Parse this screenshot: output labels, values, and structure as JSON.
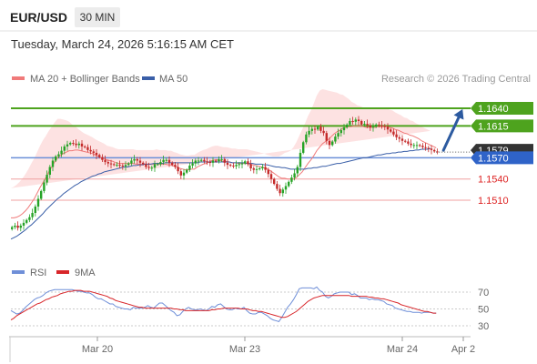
{
  "header": {
    "symbol": "EUR/USD",
    "timeframe": "30 MIN",
    "datetime": "Tuesday, March 24, 2026 5:16:15 AM CET"
  },
  "legend": {
    "ma20": "MA 20 + Bollinger Bands",
    "ma50": "MA 50",
    "credit": "Research © 2026 Trading Central",
    "rsi": "RSI",
    "rsi_ma": "9MA"
  },
  "colors": {
    "up": "#26a326",
    "down": "#c42a2a",
    "bollinger_fill": "#fde2e2",
    "ma20": "#f07a7a",
    "ma50": "#3a5fa8",
    "resistance": "#4ea31e",
    "support": "#f0a0a0",
    "pivot": "#6b8fd8",
    "arrow": "#2c5aa0",
    "rsi": "#6f8fd8",
    "rsi_ma": "#d8262a"
  },
  "chart_data": [
    {
      "type": "candlestick",
      "title": "EUR/USD 30 MIN",
      "x_ticks": [
        "Mar 20",
        "Mar 23",
        "Mar 24",
        "Apr 2"
      ],
      "levels": [
        {
          "value": 1.164,
          "label": "1.1640",
          "kind": "resistance"
        },
        {
          "value": 1.1615,
          "label": "1.1615",
          "kind": "resistance"
        },
        {
          "value": 1.157,
          "label": "1.1570",
          "kind": "pivot"
        },
        {
          "value": 1.154,
          "label": "1.1540",
          "kind": "support"
        },
        {
          "value": 1.151,
          "label": "1.1510",
          "kind": "support"
        }
      ],
      "last_price_label": "1.1579",
      "close": [
        1.1472,
        1.1474,
        1.1471,
        1.1474,
        1.1478,
        1.1482,
        1.1486,
        1.1492,
        1.1501,
        1.1512,
        1.1523,
        1.1535,
        1.1546,
        1.1557,
        1.1566,
        1.1572,
        1.1575,
        1.158,
        1.1586,
        1.1589,
        1.1591,
        1.159,
        1.1588,
        1.159,
        1.1586,
        1.1585,
        1.1581,
        1.1579,
        1.1577,
        1.1574,
        1.1571,
        1.1567,
        1.1564,
        1.1562,
        1.1561,
        1.156,
        1.156,
        1.1559,
        1.1558,
        1.156,
        1.1562,
        1.1566,
        1.1568,
        1.1566,
        1.1563,
        1.1561,
        1.1557,
        1.1556,
        1.1556,
        1.1561,
        1.1561,
        1.1564,
        1.1567,
        1.1567,
        1.1563,
        1.156,
        1.1557,
        1.1551,
        1.1545,
        1.1549,
        1.1553,
        1.1559,
        1.1562,
        1.1566,
        1.1566,
        1.1567,
        1.1565,
        1.1564,
        1.1563,
        1.1566,
        1.1565,
        1.1568,
        1.1568,
        1.1563,
        1.156,
        1.1559,
        1.1558,
        1.156,
        1.1561,
        1.1562,
        1.1565,
        1.1561,
        1.1555,
        1.1553,
        1.1554,
        1.1555,
        1.1557,
        1.1553,
        1.1547,
        1.154,
        1.1533,
        1.1526,
        1.152,
        1.1525,
        1.153,
        1.1536,
        1.1542,
        1.1548,
        1.1557,
        1.1577,
        1.1592,
        1.1603,
        1.1608,
        1.1611,
        1.161,
        1.1614,
        1.1608,
        1.1605,
        1.1594,
        1.1588,
        1.1593,
        1.16,
        1.1605,
        1.1609,
        1.1613,
        1.1617,
        1.1622,
        1.1621,
        1.1624,
        1.1622,
        1.1617,
        1.1618,
        1.1616,
        1.1613,
        1.1614,
        1.1617,
        1.1616,
        1.1615,
        1.1614,
        1.161,
        1.1607,
        1.1603,
        1.1599,
        1.1597,
        1.1594,
        1.1593,
        1.159,
        1.1588,
        1.1588,
        1.1588,
        1.1587,
        1.1585,
        1.1584,
        1.1583,
        1.1581,
        1.1579,
        1.1578
      ],
      "ma20": [
        1.1485,
        1.1485,
        1.1486,
        1.1488,
        1.1491,
        1.1495,
        1.15,
        1.1506,
        1.1512,
        1.152,
        1.1528,
        1.1535,
        1.1542,
        1.155,
        1.1557,
        1.1564,
        1.157,
        1.1573,
        1.1576,
        1.1578,
        1.158,
        1.158,
        1.1581,
        1.1581,
        1.158,
        1.1579,
        1.1578,
        1.1577,
        1.1576,
        1.1574,
        1.1572,
        1.157,
        1.1569,
        1.1567,
        1.1566,
        1.1565,
        1.1563,
        1.1562,
        1.1562,
        1.1562,
        1.1562,
        1.1562,
        1.1562,
        1.1561,
        1.1561,
        1.1561,
        1.1561,
        1.1561,
        1.1561,
        1.1561,
        1.1562,
        1.1561,
        1.1561,
        1.1561,
        1.156,
        1.156,
        1.1558,
        1.1557,
        1.1555,
        1.1554,
        1.1553,
        1.1553,
        1.1554,
        1.1554,
        1.1557,
        1.1559,
        1.1561,
        1.1562,
        1.1564,
        1.1566,
        1.1567,
        1.1567,
        1.1566,
        1.1565,
        1.1565,
        1.1564,
        1.1563,
        1.1563,
        1.1562,
        1.1562,
        1.1562,
        1.1562,
        1.1561,
        1.156,
        1.1559,
        1.1558,
        1.1557,
        1.1556,
        1.1554,
        1.1552,
        1.1549,
        1.1546,
        1.1543,
        1.1541,
        1.1541,
        1.154,
        1.154,
        1.154,
        1.1542,
        1.1546,
        1.155,
        1.1556,
        1.1562,
        1.1567,
        1.1573,
        1.158,
        1.1585,
        1.159,
        1.1593,
        1.1596,
        1.16,
        1.1604,
        1.1607,
        1.1609,
        1.1612,
        1.1613,
        1.1614,
        1.1614,
        1.1615,
        1.1615,
        1.1615,
        1.1614,
        1.1613,
        1.1613,
        1.1613,
        1.1613,
        1.1614,
        1.1614,
        1.1614,
        1.1614,
        1.1613,
        1.1612,
        1.161,
        1.1609,
        1.1607,
        1.1605,
        1.1604,
        1.1602,
        1.1601,
        1.1599,
        1.1597,
        1.1594,
        1.1592,
        1.159,
        1.1588,
        1.1586,
        1.1584
      ],
      "ma50": [
        1.1455,
        1.1457,
        1.1459,
        1.1462,
        1.1465,
        1.1468,
        1.1472,
        1.1475,
        1.1479,
        1.1483,
        1.1487,
        1.1491,
        1.1496,
        1.15,
        1.1504,
        1.1508,
        1.1512,
        1.1515,
        1.1519,
        1.1522,
        1.1525,
        1.1528,
        1.1531,
        1.1533,
        1.1536,
        1.1538,
        1.154,
        1.1542,
        1.1544,
        1.1545,
        1.1547,
        1.1548,
        1.155,
        1.1551,
        1.1552,
        1.1553,
        1.1554,
        1.1555,
        1.1556,
        1.1557,
        1.1557,
        1.1558,
        1.1559,
        1.1559,
        1.156,
        1.156,
        1.1561,
        1.1561,
        1.1561,
        1.1562,
        1.1562,
        1.1562,
        1.1562,
        1.1563,
        1.1563,
        1.1563,
        1.1563,
        1.1563,
        1.1563,
        1.1563,
        1.1563,
        1.1563,
        1.1563,
        1.1563,
        1.1563,
        1.1564,
        1.1564,
        1.1564,
        1.1564,
        1.1564,
        1.1564,
        1.1564,
        1.1564,
        1.1564,
        1.1564,
        1.1564,
        1.1563,
        1.1563,
        1.1563,
        1.1563,
        1.1563,
        1.1562,
        1.1562,
        1.1562,
        1.1561,
        1.1561,
        1.1561,
        1.156,
        1.156,
        1.1559,
        1.1558,
        1.1557,
        1.1557,
        1.1556,
        1.1556,
        1.1555,
        1.1554,
        1.1554,
        1.1554,
        1.1554,
        1.1554,
        1.1554,
        1.1555,
        1.1555,
        1.1556,
        1.1556,
        1.1557,
        1.1558,
        1.1558,
        1.1559,
        1.156,
        1.1561,
        1.1562,
        1.1562,
        1.1563,
        1.1564,
        1.1565,
        1.1566,
        1.1567,
        1.1568,
        1.1569,
        1.157,
        1.157,
        1.1571,
        1.1572,
        1.1573,
        1.1574,
        1.1574,
        1.1575,
        1.1576,
        1.1576,
        1.1577,
        1.1577,
        1.1578,
        1.1578,
        1.1579,
        1.1579,
        1.158,
        1.158,
        1.1581,
        1.1581,
        1.1582,
        1.1582,
        1.1582,
        1.1583
      ],
      "bb_width": [
        0.0042,
        0.0044,
        0.0046,
        0.0048,
        0.005,
        0.0052,
        0.0054,
        0.0056,
        0.0057,
        0.0058,
        0.0059,
        0.006,
        0.0059,
        0.0058,
        0.0057,
        0.0056,
        0.0055,
        0.0052,
        0.0048,
        0.0045,
        0.0041,
        0.0037,
        0.0034,
        0.003,
        0.0028,
        0.0026,
        0.0025,
        0.0024,
        0.0023,
        0.0022,
        0.0022,
        0.0022,
        0.0021,
        0.002,
        0.002,
        0.002,
        0.002,
        0.002,
        0.002,
        0.002,
        0.002,
        0.002,
        0.002,
        0.002,
        0.002,
        0.002,
        0.002,
        0.002,
        0.002,
        0.002,
        0.002,
        0.002,
        0.002,
        0.002,
        0.002,
        0.002,
        0.002,
        0.002,
        0.002,
        0.002,
        0.002,
        0.002,
        0.002,
        0.002,
        0.002,
        0.002,
        0.002,
        0.002,
        0.002,
        0.002,
        0.002,
        0.002,
        0.002,
        0.002,
        0.002,
        0.002,
        0.002,
        0.002,
        0.002,
        0.002,
        0.002,
        0.002,
        0.002,
        0.002,
        0.002,
        0.002,
        0.002,
        0.002,
        0.002,
        0.0021,
        0.0023,
        0.0026,
        0.0029,
        0.0033,
        0.0036,
        0.0038,
        0.004,
        0.0045,
        0.005,
        0.0055,
        0.006,
        0.0063,
        0.0067,
        0.007,
        0.0074,
        0.0078,
        0.008,
        0.0077,
        0.0073,
        0.0069,
        0.0064,
        0.0059,
        0.0055,
        0.0051,
        0.0047,
        0.0043,
        0.0039,
        0.0035,
        0.0032,
        0.0029,
        0.0028,
        0.0027,
        0.0026,
        0.0026,
        0.0026,
        0.0026,
        0.0026,
        0.0026,
        0.0026,
        0.0026,
        0.0025,
        0.0025,
        0.0024,
        0.0023,
        0.0023,
        0.0022,
        0.0022,
        0.0021,
        0.0021,
        0.002,
        0.002,
        0.002,
        0.002,
        0.002,
        0.002
      ],
      "forecast": {
        "from": 1.1578,
        "to": 1.164
      }
    },
    {
      "type": "line",
      "title": "RSI",
      "y_ticks": [
        70,
        50,
        30
      ],
      "ylim": [
        30,
        70
      ],
      "series": [
        {
          "name": "RSI",
          "values": [
            48,
            46,
            44,
            45,
            48,
            52,
            55,
            58,
            61,
            63,
            64,
            66,
            69,
            71,
            72,
            73,
            73,
            73,
            73,
            73,
            73,
            73,
            72,
            71,
            71,
            70,
            69,
            69,
            67,
            64,
            62,
            62,
            60,
            58,
            56,
            56,
            53,
            52,
            51,
            50,
            50,
            49,
            52,
            51,
            51,
            51,
            52,
            54,
            52,
            51,
            54,
            57,
            57,
            54,
            51,
            48,
            46,
            42,
            43,
            47,
            50,
            52,
            50,
            49,
            49,
            50,
            49,
            48,
            50,
            53,
            52,
            55,
            56,
            53,
            50,
            49,
            49,
            51,
            50,
            50,
            52,
            48,
            45,
            44,
            44,
            46,
            46,
            44,
            42,
            39,
            37,
            36,
            35,
            40,
            46,
            52,
            56,
            61,
            67,
            74,
            75,
            75,
            75,
            75,
            74,
            76,
            72,
            70,
            65,
            63,
            65,
            68,
            69,
            70,
            70,
            70,
            70,
            67,
            68,
            66,
            63,
            63,
            63,
            61,
            62,
            61,
            61,
            60,
            59,
            56,
            55,
            54,
            51,
            50,
            49,
            48,
            47,
            47,
            46,
            46,
            46,
            45,
            46,
            46,
            46,
            45,
            45
          ]
        },
        {
          "name": "9MA",
          "values": [
            37,
            39,
            42,
            44,
            46,
            48,
            50,
            52,
            54,
            56,
            57,
            59,
            61,
            62,
            64,
            65,
            66,
            68,
            69,
            70,
            71,
            71,
            72,
            72,
            72,
            71,
            71,
            71,
            70,
            69,
            68,
            67,
            66,
            65,
            63,
            62,
            60,
            59,
            58,
            57,
            56,
            55,
            54,
            53,
            52,
            52,
            51,
            51,
            51,
            51,
            51,
            51,
            51,
            51,
            51,
            51,
            50,
            50,
            49,
            49,
            48,
            48,
            48,
            48,
            48,
            48,
            48,
            48,
            48,
            49,
            49,
            50,
            50,
            51,
            51,
            51,
            51,
            51,
            51,
            50,
            50,
            50,
            49,
            48,
            48,
            47,
            47,
            46,
            45,
            44,
            43,
            42,
            41,
            40,
            40,
            41,
            43,
            45,
            47,
            50,
            53,
            56,
            59,
            61,
            63,
            64,
            65,
            66,
            66,
            66,
            66,
            66,
            66,
            66,
            66,
            66,
            66,
            65,
            65,
            65,
            65,
            65,
            65,
            64,
            64,
            63,
            63,
            62,
            62,
            61,
            60,
            59,
            58,
            57,
            55,
            54,
            53,
            52,
            51,
            50,
            49,
            48,
            47,
            47,
            46,
            45,
            45
          ]
        }
      ]
    }
  ]
}
